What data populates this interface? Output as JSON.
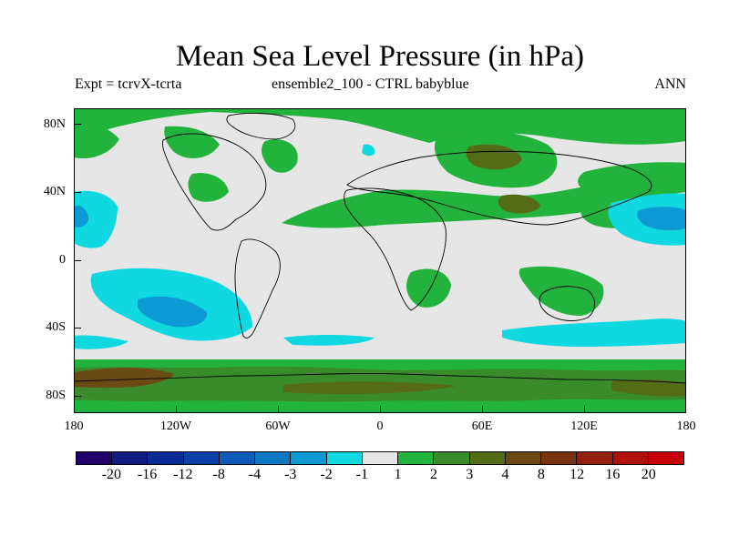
{
  "title": "Mean Sea Level Pressure (in hPa)",
  "subtitle_left": "Expt = tcrvX-tcrta",
  "subtitle_center": "ensemble2_100 - CTRL babyblue",
  "subtitle_right": "ANN",
  "y_axis_labels": [
    "80N",
    "40N",
    "0",
    "40S",
    "80S"
  ],
  "x_axis_labels": [
    "180",
    "120W",
    "60W",
    "0",
    "60E",
    "120E",
    "180"
  ],
  "colorbar": {
    "colors": [
      "#22006b",
      "#101a80",
      "#0a2a96",
      "#0c3fa8",
      "#0e5ab8",
      "#0d78c4",
      "#0c99d4",
      "#10d8e0",
      "#e6e6e6",
      "#22b33c",
      "#3a8c2a",
      "#556b16",
      "#6b4b14",
      "#7a3310",
      "#962010",
      "#b0100c",
      "#c8000a"
    ],
    "labels": [
      "-20",
      "-16",
      "-12",
      "-8",
      "-4",
      "-3",
      "-2",
      "-1",
      "1",
      "2",
      "3",
      "4",
      "8",
      "12",
      "16",
      "20"
    ]
  },
  "colors": {
    "land_outline": "#000000",
    "neutral": "#e6e6e6",
    "green": "#22b33c",
    "dark_green": "#556b16",
    "brown": "#6b4b14",
    "cyan": "#10d8e0",
    "blue": "#0c99d4"
  }
}
